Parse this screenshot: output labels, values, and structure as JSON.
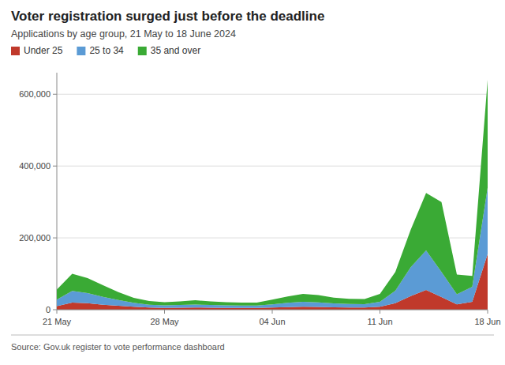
{
  "chart_data": {
    "type": "area",
    "stacked": true,
    "title": "Voter registration surged just before the deadline",
    "subtitle": "Applications by age group, 21 May to 18 June 2024",
    "source": "Source: Gov.uk register to vote performance dashboard",
    "categories": [
      "21 May",
      null,
      null,
      null,
      null,
      null,
      null,
      "28 May",
      null,
      null,
      null,
      null,
      null,
      null,
      "04 Jun",
      null,
      null,
      null,
      null,
      null,
      null,
      "11 Jun",
      null,
      null,
      null,
      null,
      null,
      null,
      "18 Jun"
    ],
    "series": [
      {
        "name": "Under 25",
        "color": "#c0392b",
        "values": [
          10000,
          20000,
          18000,
          14000,
          11000,
          8000,
          6000,
          5000,
          5500,
          6000,
          5500,
          5000,
          5000,
          5000,
          6000,
          7000,
          8000,
          7500,
          6500,
          6000,
          6000,
          8000,
          18000,
          38000,
          55000,
          35000,
          15000,
          22000,
          155000
        ]
      },
      {
        "name": "25 to 34",
        "color": "#5b9bd5",
        "values": [
          18000,
          32000,
          28000,
          22000,
          16000,
          11000,
          8000,
          7000,
          7500,
          8500,
          7500,
          7000,
          6500,
          6500,
          9000,
          12000,
          14000,
          13000,
          11000,
          10000,
          9500,
          14000,
          35000,
          80000,
          110000,
          70000,
          28000,
          42000,
          185000
        ]
      },
      {
        "name": "35 and over",
        "color": "#3aaa35",
        "values": [
          28000,
          48000,
          42000,
          32000,
          22000,
          14000,
          10000,
          9000,
          10000,
          12000,
          10000,
          9000,
          8500,
          8500,
          13000,
          18000,
          22000,
          20000,
          16000,
          14000,
          14000,
          22000,
          52000,
          105000,
          160000,
          195000,
          55000,
          30000,
          300000
        ]
      }
    ],
    "ylim": [
      0,
      660000
    ],
    "yticks": [
      0,
      {
        "value": 200000,
        "label": "200,000"
      },
      {
        "value": 400000,
        "label": "400,000"
      },
      {
        "value": 600000,
        "label": "600,000"
      }
    ],
    "grid": true,
    "legend": "upper left"
  }
}
